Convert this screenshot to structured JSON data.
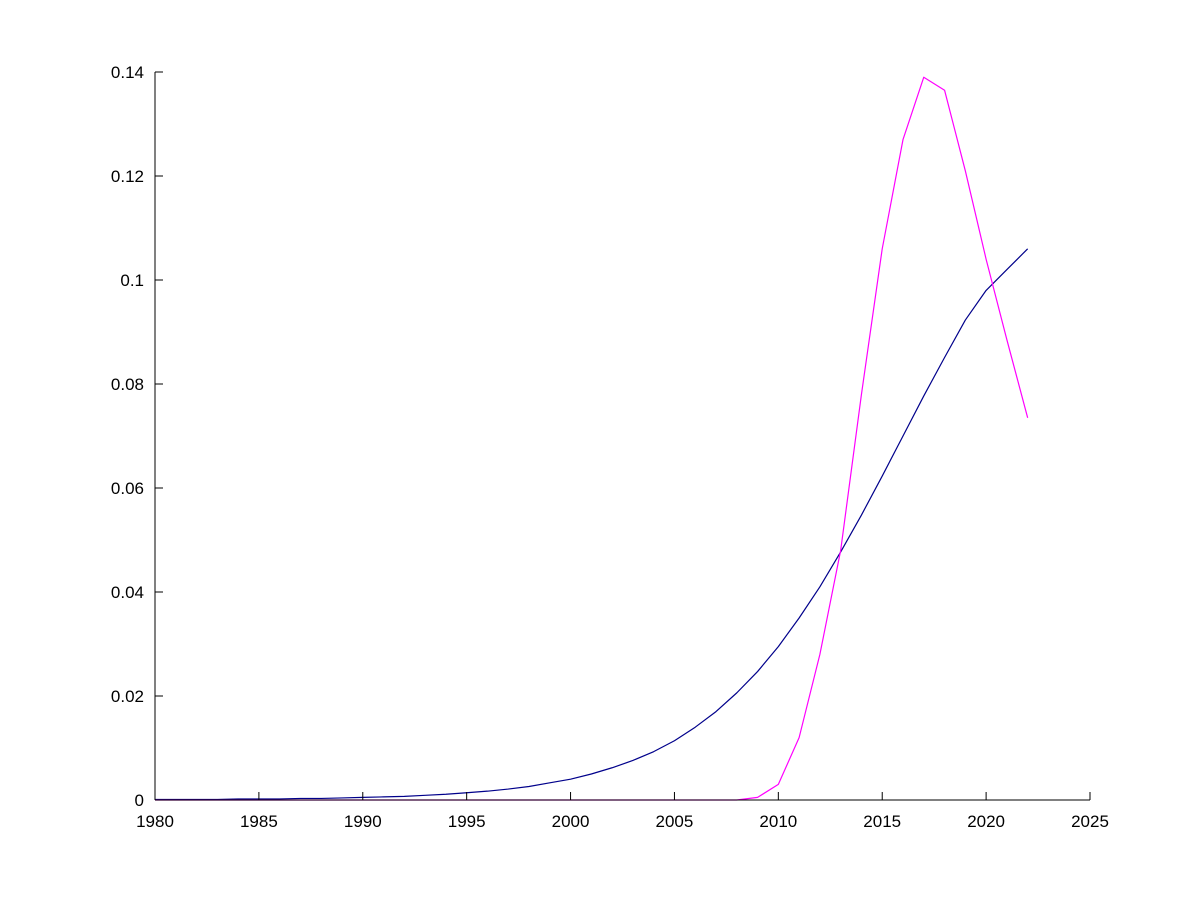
{
  "figure": {
    "background": "#ffffff"
  },
  "chart_data": {
    "type": "line",
    "title": "",
    "xlabel": "",
    "ylabel": "",
    "grid": false,
    "legend": null,
    "xlim": [
      1980,
      2025
    ],
    "ylim": [
      0,
      0.14
    ],
    "x_ticks": [
      1980,
      1985,
      1990,
      1995,
      2000,
      2005,
      2010,
      2015,
      2020,
      2025
    ],
    "x_tick_labels": [
      "1980",
      "1985",
      "1990",
      "1995",
      "2000",
      "2005",
      "2010",
      "2015",
      "2020",
      "2025"
    ],
    "y_ticks": [
      0,
      0.02,
      0.04,
      0.06,
      0.08,
      0.1,
      0.12,
      0.14
    ],
    "y_tick_labels": [
      "0",
      "0.02",
      "0.04",
      "0.06",
      "0.08",
      "0.1",
      "0.12",
      "0.14"
    ],
    "axis_color": "#000000",
    "x": [
      1980,
      1981,
      1982,
      1983,
      1984,
      1985,
      1986,
      1987,
      1988,
      1989,
      1990,
      1991,
      1992,
      1993,
      1994,
      1995,
      1996,
      1997,
      1998,
      1999,
      2000,
      2001,
      2002,
      2003,
      2004,
      2005,
      2006,
      2007,
      2008,
      2009,
      2010,
      2011,
      2012,
      2013,
      2014,
      2015,
      2016,
      2017,
      2018,
      2019,
      2020,
      2021,
      2022
    ],
    "series": [
      {
        "name": "smooth-sigmoid-line",
        "color": "#00008b",
        "line_width": 1.2,
        "values": [
          0.0001,
          0.0001,
          0.0001,
          0.0001,
          0.0002,
          0.0002,
          0.0002,
          0.0003,
          0.0003,
          0.0004,
          0.0005,
          0.0006,
          0.0007,
          0.0009,
          0.0011,
          0.0014,
          0.0017,
          0.0021,
          0.0026,
          0.0033,
          0.004,
          0.005,
          0.0062,
          0.0076,
          0.0093,
          0.0114,
          0.014,
          0.017,
          0.0206,
          0.0247,
          0.0295,
          0.035,
          0.041,
          0.0477,
          0.0548,
          0.0623,
          0.07,
          0.0777,
          0.0851,
          0.0923,
          0.098,
          0.102,
          0.106
        ]
      },
      {
        "name": "peaked-spike-line",
        "color": "#ff00ff",
        "line_width": 1.2,
        "values": [
          0,
          0,
          0,
          0,
          0,
          0,
          0,
          0,
          0,
          0,
          0,
          0,
          0,
          0,
          0,
          0,
          0,
          0,
          0,
          0,
          0,
          0,
          0,
          0,
          0,
          0,
          0,
          0,
          0,
          0.0005,
          0.003,
          0.012,
          0.028,
          0.048,
          0.078,
          0.106,
          0.127,
          0.139,
          0.1365,
          0.121,
          0.104,
          0.0885,
          0.0735
        ]
      }
    ]
  }
}
